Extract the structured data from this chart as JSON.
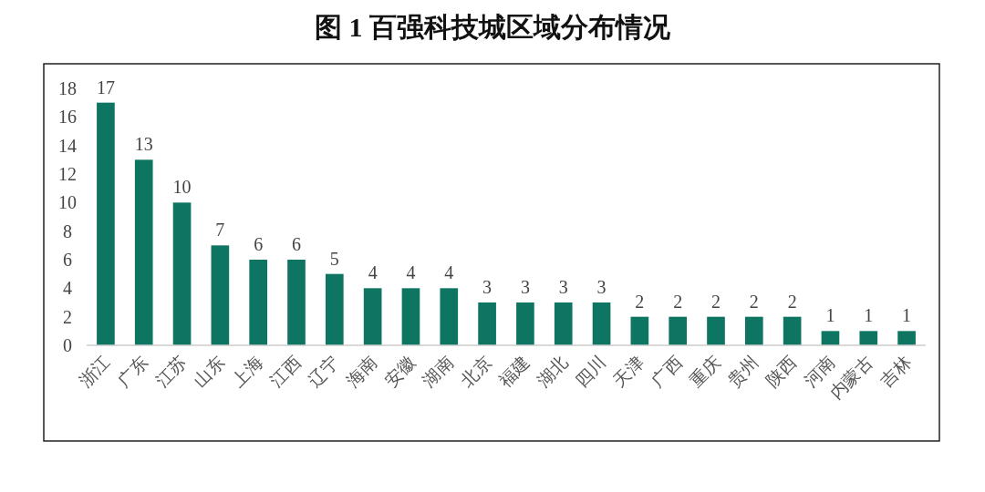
{
  "chart_data": {
    "type": "bar",
    "title": "图 1  百强科技城区域分布情况",
    "categories": [
      "浙江",
      "广东",
      "江苏",
      "山东",
      "上海",
      "江西",
      "辽宁",
      "海南",
      "安徽",
      "湖南",
      "北京",
      "福建",
      "湖北",
      "四川",
      "天津",
      "广西",
      "重庆",
      "贵州",
      "陕西",
      "河南",
      "内蒙古",
      "吉林"
    ],
    "values": [
      17,
      13,
      10,
      7,
      6,
      6,
      5,
      4,
      4,
      4,
      3,
      3,
      3,
      3,
      2,
      2,
      2,
      2,
      2,
      1,
      1,
      1
    ],
    "color": "#0e7563",
    "ylim": [
      0,
      18
    ],
    "yticks": [
      0,
      2,
      4,
      6,
      8,
      10,
      12,
      14,
      16,
      18
    ],
    "data_labels": true
  }
}
